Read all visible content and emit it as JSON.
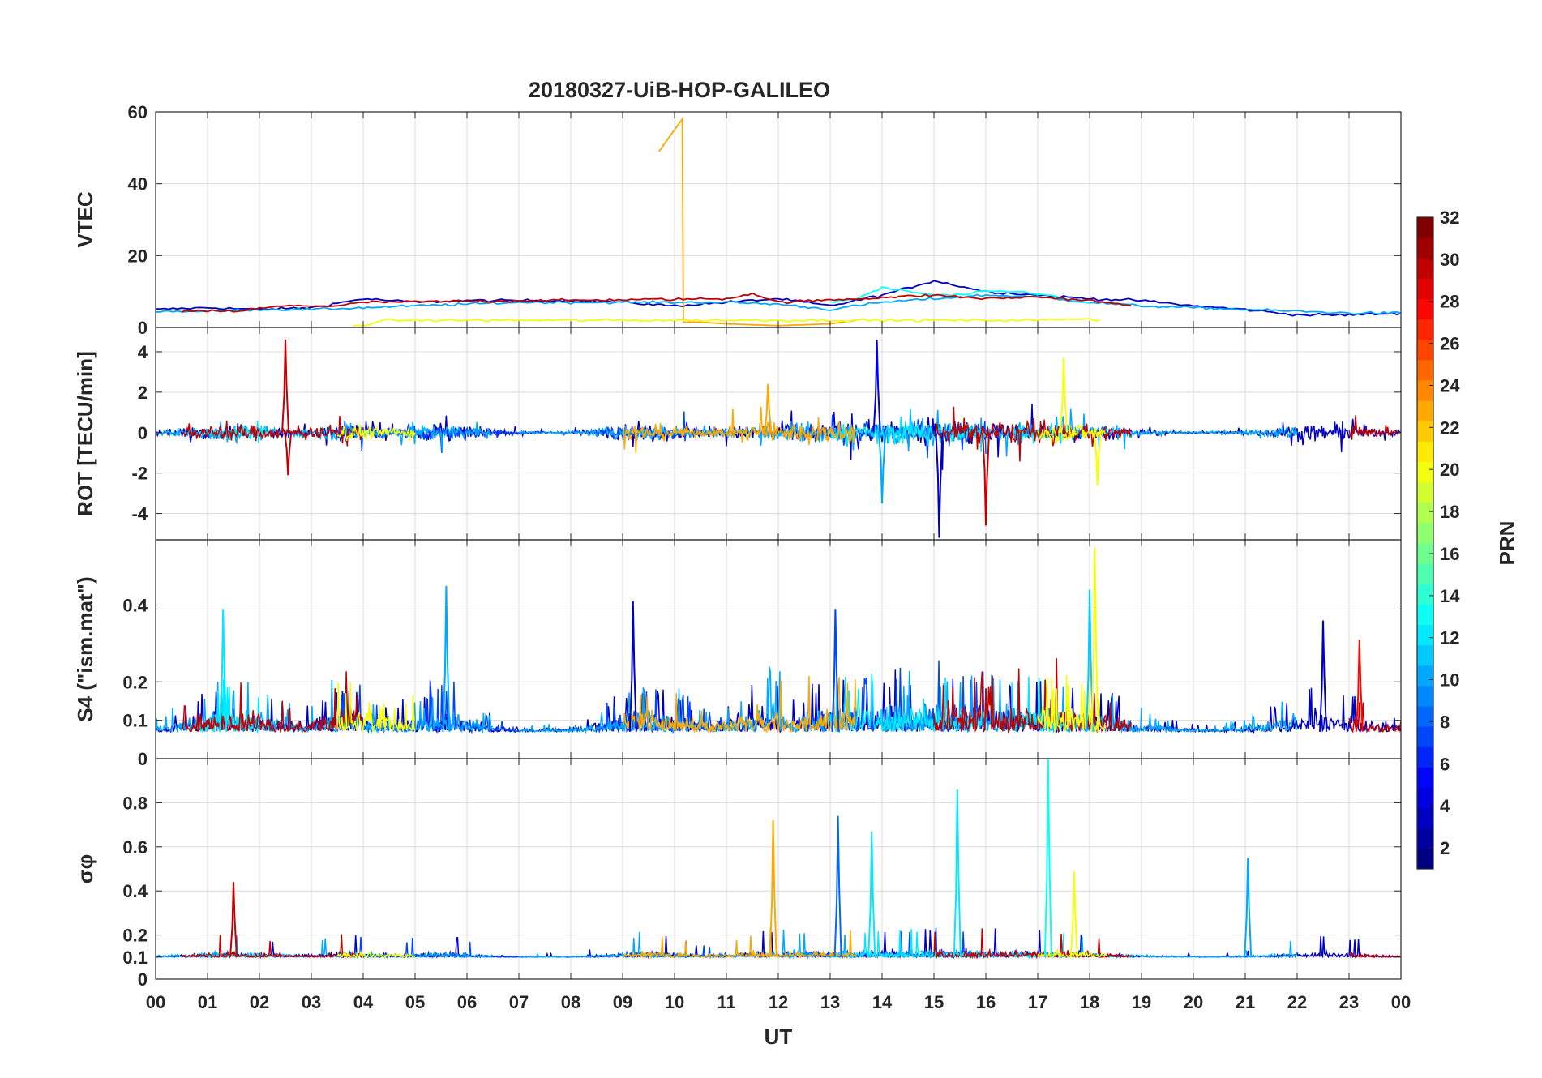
{
  "chart_data": {
    "type": "line",
    "title": "20180327-UiB-HOP-GALILEO",
    "xlabel": "UT",
    "x_ticks": [
      "00",
      "01",
      "02",
      "03",
      "04",
      "05",
      "06",
      "07",
      "08",
      "09",
      "10",
      "11",
      "12",
      "13",
      "14",
      "15",
      "16",
      "17",
      "18",
      "19",
      "20",
      "21",
      "22",
      "23",
      "00"
    ],
    "xlim": [
      0,
      24
    ],
    "colorbar": {
      "label": "PRN",
      "colormap": "jet",
      "range": [
        1,
        32
      ],
      "ticks": [
        "2",
        "4",
        "6",
        "8",
        "10",
        "12",
        "14",
        "16",
        "18",
        "20",
        "22",
        "24",
        "26",
        "28",
        "30",
        "32"
      ]
    },
    "panels": [
      {
        "id": "vtec",
        "ylabel": "VTEC",
        "ylim": [
          0,
          60
        ],
        "y_ticks": [
          "0",
          "20",
          "40",
          "60"
        ],
        "series": [
          {
            "name": "PRN 3 (navy)",
            "prn": 3,
            "x": [
              0,
              1,
              2,
              3,
              4,
              5,
              6,
              7,
              8,
              9,
              10,
              11,
              12,
              13,
              14,
              15,
              16,
              17,
              18,
              19,
              20,
              21,
              22,
              23,
              24
            ],
            "y": [
              5,
              5.5,
              5,
              5.5,
              8,
              7,
              7.5,
              7.5,
              7.5,
              7,
              6,
              7,
              8,
              6,
              9,
              13,
              10,
              9,
              8,
              7.5,
              6,
              5,
              3.5,
              3.5,
              4
            ]
          },
          {
            "name": "PRN 10 (sky blue)",
            "prn": 10,
            "x": [
              0,
              1,
              2,
              3,
              4,
              5,
              6,
              7,
              8,
              9,
              10,
              11,
              12,
              13,
              14,
              15,
              16,
              17,
              18,
              19,
              20,
              21,
              22,
              23,
              24
            ],
            "y": [
              4.5,
              4.5,
              5,
              5,
              5.5,
              6,
              6.5,
              7,
              7,
              7,
              7,
              7,
              6.5,
              5,
              7,
              8,
              9,
              8.5,
              7,
              6,
              5.5,
              5,
              4.5,
              4,
              4
            ]
          },
          {
            "name": "PRN 13 (cyan)",
            "prn": 13,
            "x": [
              13,
              13.5,
              14,
              14.5,
              15,
              15.5,
              16,
              16.5,
              17,
              17.5,
              18
            ],
            "y": [
              7,
              8,
              11,
              10,
              9,
              9,
              10,
              10,
              9.5,
              8,
              7
            ]
          },
          {
            "name": "PRN 23 (orange)",
            "prn": 23,
            "x": [
              9.7,
              10.15,
              10.17,
              10.5,
              11,
              12,
              13,
              13.5
            ],
            "y": [
              49,
              58,
              1.5,
              1.5,
              1,
              0.5,
              1,
              2
            ]
          },
          {
            "name": "PRN 30 (dark red)",
            "prn": 30,
            "x": [
              0.5,
              1.5,
              2.5,
              3.5,
              4,
              11,
              11.5,
              12,
              15,
              16,
              17,
              18,
              18.8
            ],
            "y": [
              4.5,
              4.5,
              6,
              6,
              7,
              8,
              9.5,
              7,
              9,
              8,
              8.5,
              7.5,
              6
            ]
          },
          {
            "name": "PRN 20 (yellow)",
            "prn": 20,
            "x": [
              3.8,
              4.5,
              16,
              17,
              17.8,
              18.2
            ],
            "y": [
              0.3,
              2,
              2,
              2,
              2.5,
              2
            ]
          }
        ]
      },
      {
        "id": "rot",
        "ylabel": "ROT [TECU/min]",
        "ylim": [
          -5.3,
          5.2
        ],
        "y_ticks": [
          "-4",
          "-2",
          "0",
          "2",
          "4"
        ],
        "notable_spikes": [
          {
            "x": 2.5,
            "y": 4.6,
            "prn": 30
          },
          {
            "x": 2.55,
            "y": -2.1,
            "prn": 30
          },
          {
            "x": 11.8,
            "y": 2.4,
            "prn": 23
          },
          {
            "x": 13.9,
            "y": 4.6,
            "prn": 4
          },
          {
            "x": 14.0,
            "y": -3.5,
            "prn": 10
          },
          {
            "x": 15.1,
            "y": -5.2,
            "prn": 3
          },
          {
            "x": 16.0,
            "y": -4.6,
            "prn": 30
          },
          {
            "x": 17.5,
            "y": 3.7,
            "prn": 20
          },
          {
            "x": 18.15,
            "y": -2.6,
            "prn": 20
          }
        ]
      },
      {
        "id": "s4",
        "ylabel": "S4 (\"ism.mat\")",
        "ylim": [
          0,
          0.57
        ],
        "y_ticks": [
          "0",
          "0.1",
          "0.2",
          "0.4"
        ],
        "notable_peaks": [
          {
            "x": 1.3,
            "y": 0.39,
            "prn": 12
          },
          {
            "x": 5.6,
            "y": 0.45,
            "prn": 10
          },
          {
            "x": 9.2,
            "y": 0.41,
            "prn": 3
          },
          {
            "x": 13.1,
            "y": 0.39,
            "prn": 7
          },
          {
            "x": 18.0,
            "y": 0.44,
            "prn": 11
          },
          {
            "x": 18.1,
            "y": 0.55,
            "prn": 20
          },
          {
            "x": 22.5,
            "y": 0.36,
            "prn": 3
          },
          {
            "x": 23.2,
            "y": 0.31,
            "prn": 28
          }
        ]
      },
      {
        "id": "sigma_phi",
        "ylabel": "σφ",
        "ylim": [
          0,
          1.0
        ],
        "y_ticks": [
          "0",
          "0.1",
          "0.2",
          "0.4",
          "0.6",
          "0.8"
        ],
        "notable_peaks": [
          {
            "x": 1.5,
            "y": 0.44,
            "prn": 30
          },
          {
            "x": 11.9,
            "y": 0.72,
            "prn": 23
          },
          {
            "x": 13.15,
            "y": 0.74,
            "prn": 8
          },
          {
            "x": 13.8,
            "y": 0.67,
            "prn": 12
          },
          {
            "x": 15.45,
            "y": 0.86,
            "prn": 12
          },
          {
            "x": 17.2,
            "y": 1.0,
            "prn": 13
          },
          {
            "x": 17.7,
            "y": 0.49,
            "prn": 20
          },
          {
            "x": 21.05,
            "y": 0.55,
            "prn": 10
          }
        ]
      }
    ]
  }
}
